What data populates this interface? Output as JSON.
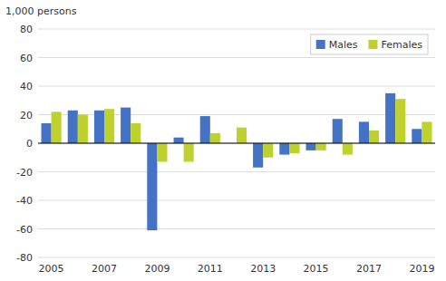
{
  "chart_data": {
    "type": "bar",
    "y_label": "1,000 persons",
    "categories": [
      "2005",
      null,
      "2007",
      null,
      "2009",
      null,
      "2011",
      null,
      "2013",
      null,
      "2015",
      null,
      "2017",
      null,
      "2019"
    ],
    "series": [
      {
        "name": "Males",
        "color": "#4472c4",
        "values": [
          14,
          23,
          23,
          25,
          -61,
          4,
          19,
          0,
          -17,
          -8,
          -5,
          17,
          15,
          35,
          10
        ]
      },
      {
        "name": "Females",
        "color": "#bed12c",
        "values": [
          22,
          20,
          24,
          14,
          -13,
          -13,
          7,
          11,
          -10,
          -7,
          -5,
          -8,
          9,
          31,
          15
        ]
      }
    ],
    "ylim": [
      -80,
      80
    ],
    "yticks": [
      -80,
      -60,
      -40,
      -20,
      0,
      20,
      40,
      60,
      80
    ],
    "grid": true,
    "legend": "upper right"
  }
}
